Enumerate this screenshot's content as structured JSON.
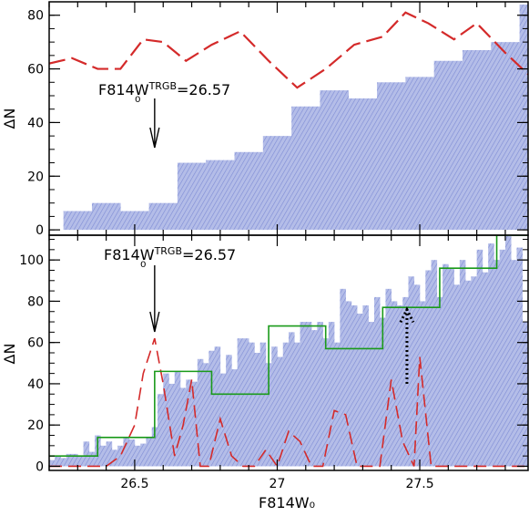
{
  "colors": {
    "hist_fill": "#b4bde8",
    "hist_hatch": "#7d8bd4",
    "red_curve": "#d42a2a",
    "green_step": "#1a9a1a",
    "dotted_arrow": "#000000",
    "axes": "#000000"
  },
  "shared_xaxis": {
    "label": "F814W₀",
    "range": [
      26.2,
      27.88
    ],
    "ticks": [
      26.5,
      27,
      27.5
    ],
    "tick_labels": [
      "26.5",
      "27",
      "27.5"
    ]
  },
  "chart_data": [
    {
      "type": "bar",
      "panel": "top",
      "ylabel": "ΔN",
      "ylim": [
        -2,
        85
      ],
      "yticks": [
        0,
        20,
        40,
        60,
        80
      ],
      "ytick_labels": [
        "0",
        "20",
        "40",
        "60",
        "80"
      ],
      "annotation": {
        "text_main": "F814W",
        "text_sub": "₀",
        "text_sup": "TRGB",
        "text_value": "=26.57",
        "arrow_x": 26.57
      },
      "histogram": {
        "bin_width": 0.05,
        "bin_starts": [
          26.2,
          26.25,
          26.3,
          26.35,
          26.4,
          26.45,
          26.5,
          26.55,
          26.6,
          26.65,
          26.7,
          26.75,
          26.8,
          26.85,
          26.9,
          26.95,
          27.0,
          27.05,
          27.1,
          27.15,
          27.2,
          27.25,
          27.3,
          27.35,
          27.4,
          27.45,
          27.5,
          27.55,
          27.6,
          27.65,
          27.7,
          27.75,
          27.8,
          27.85
        ],
        "values": [
          0,
          7,
          7,
          10,
          10,
          7,
          7,
          10,
          10,
          25,
          25,
          26,
          26,
          29,
          29,
          35,
          35,
          46,
          46,
          52,
          52,
          49,
          49,
          55,
          55,
          57,
          57,
          63,
          63,
          67,
          67,
          70,
          70,
          84
        ]
      },
      "red_curve": {
        "x": [
          26.2,
          26.28,
          26.37,
          26.45,
          26.53,
          26.6,
          26.68,
          26.77,
          26.87,
          26.97,
          27.07,
          27.17,
          27.27,
          27.37,
          27.45,
          27.53,
          27.62,
          27.7,
          27.8,
          27.88
        ],
        "y": [
          62,
          64,
          60,
          60,
          71,
          70,
          63,
          69,
          74,
          63,
          53,
          60,
          69,
          72,
          81,
          77,
          71,
          77,
          66,
          58
        ]
      }
    },
    {
      "type": "bar",
      "panel": "bottom",
      "ylabel": "ΔN",
      "ylim": [
        -2,
        112
      ],
      "yticks": [
        0,
        20,
        40,
        60,
        80,
        100
      ],
      "ytick_labels": [
        "0",
        "20",
        "40",
        "60",
        "80",
        "100"
      ],
      "annotation": {
        "text_main": "F814W",
        "text_sub": "₀",
        "text_sup": "TRGB",
        "text_value": "=26.57",
        "arrow_x": 26.57
      },
      "histogram": {
        "bin_width": 0.02,
        "bin_starts": [
          26.2,
          26.22,
          26.24,
          26.26,
          26.28,
          26.3,
          26.32,
          26.34,
          26.36,
          26.38,
          26.4,
          26.42,
          26.44,
          26.46,
          26.48,
          26.5,
          26.52,
          26.54,
          26.56,
          26.58,
          26.6,
          26.62,
          26.64,
          26.66,
          26.68,
          26.7,
          26.72,
          26.74,
          26.76,
          26.78,
          26.8,
          26.82,
          26.84,
          26.86,
          26.88,
          26.9,
          26.92,
          26.94,
          26.96,
          26.98,
          27.0,
          27.02,
          27.04,
          27.06,
          27.08,
          27.1,
          27.12,
          27.14,
          27.16,
          27.18,
          27.2,
          27.22,
          27.24,
          27.26,
          27.28,
          27.3,
          27.32,
          27.34,
          27.36,
          27.38,
          27.4,
          27.42,
          27.44,
          27.46,
          27.48,
          27.5,
          27.52,
          27.54,
          27.56,
          27.58,
          27.6,
          27.62,
          27.64,
          27.66,
          27.68,
          27.7,
          27.72,
          27.74,
          27.76,
          27.78,
          27.8,
          27.82,
          27.84,
          27.86
        ],
        "values": [
          3,
          5,
          4,
          6,
          6,
          5,
          12,
          7,
          15,
          10,
          12,
          8,
          10,
          14,
          13,
          10,
          11,
          14,
          19,
          35,
          45,
          40,
          46,
          38,
          42,
          41,
          52,
          50,
          56,
          58,
          45,
          54,
          47,
          62,
          62,
          60,
          55,
          60,
          50,
          58,
          53,
          60,
          65,
          60,
          70,
          70,
          66,
          70,
          62,
          70,
          60,
          86,
          80,
          78,
          74,
          78,
          70,
          82,
          72,
          86,
          80,
          78,
          82,
          92,
          88,
          80,
          95,
          100,
          82,
          98,
          96,
          88,
          100,
          90,
          92,
          105,
          94,
          108,
          100,
          105,
          112,
          100,
          106,
          70
        ]
      },
      "green_step": {
        "edges": [
          26.2,
          26.37,
          26.57,
          26.77,
          26.97,
          27.17,
          27.37,
          27.57,
          27.77,
          27.88
        ],
        "values": [
          5,
          14,
          46,
          35,
          68,
          57,
          77,
          96,
          112
        ]
      },
      "red_curve": {
        "x": [
          26.2,
          26.3,
          26.4,
          26.45,
          26.5,
          26.53,
          26.57,
          26.6,
          26.64,
          26.67,
          26.7,
          26.73,
          26.76,
          26.8,
          26.84,
          26.88,
          26.92,
          26.96,
          27.0,
          27.04,
          27.08,
          27.12,
          27.16,
          27.2,
          27.24,
          27.28,
          27.32,
          27.36,
          27.4,
          27.44,
          27.48,
          27.5,
          27.54,
          27.58,
          27.62,
          27.66,
          27.7,
          27.74,
          27.78,
          27.82,
          27.88
        ],
        "y": [
          0,
          0,
          0,
          5,
          20,
          45,
          62,
          40,
          5,
          20,
          42,
          0,
          0,
          23,
          5,
          0,
          0,
          8,
          0,
          17,
          12,
          0,
          0,
          27,
          25,
          0,
          0,
          0,
          42,
          12,
          0,
          53,
          0,
          0,
          0,
          0,
          0,
          0,
          0,
          0,
          0
        ]
      },
      "dotted_arrow": {
        "x": 27.455,
        "y_bottom": 40,
        "y_top": 76
      }
    }
  ]
}
